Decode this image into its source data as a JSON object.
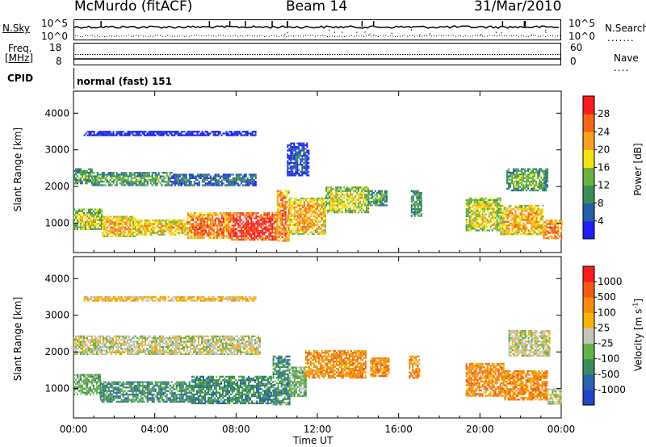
{
  "header": {
    "station": "McMurdo (fitACF)",
    "beam": "Beam 14",
    "date": "31/Mar/2010"
  },
  "top_panel": {
    "left_label": "N.Sky",
    "right_label": "N.Search",
    "left_ticks": [
      "10^5",
      "10^0"
    ],
    "right_ticks": [
      "10^5",
      "10^0"
    ]
  },
  "freq_panel": {
    "left_label_line1": "Freq.",
    "left_label_line2": "[MHz]",
    "right_label": "Nave",
    "left_ticks": [
      "18",
      "8"
    ],
    "right_ticks": [
      "60",
      "0"
    ]
  },
  "cpid": {
    "label": "CPID",
    "value": "normal (fast) 151"
  },
  "chart_data": [
    {
      "type": "heatmap",
      "name": "power",
      "ylabel": "Slant Range [km]",
      "ylim": [
        200,
        4600
      ],
      "yticks": [
        "1000",
        "2000",
        "3000",
        "4000"
      ],
      "colorbar_label": "Power [dB]",
      "colorbar_ticks": [
        "4",
        "8",
        "12",
        "16",
        "20",
        "24",
        "28"
      ],
      "colorbar_colors": [
        "#1d1dff",
        "#245ea8",
        "#3b8d54",
        "#69b244",
        "#f2e30f",
        "#f7a11e",
        "#f46515",
        "#ff1b1b"
      ],
      "regions": [
        {
          "t": [
            0.0,
            0.9
          ],
          "r": [
            2100,
            2500
          ],
          "level": 3
        },
        {
          "t": [
            0.9,
            4.8
          ],
          "r": [
            2050,
            2400
          ],
          "level": 3
        },
        {
          "t": [
            4.8,
            9.0
          ],
          "r": [
            2050,
            2350
          ],
          "level": 2
        },
        {
          "t": [
            0.0,
            1.4
          ],
          "r": [
            850,
            1400
          ],
          "level": 4
        },
        {
          "t": [
            1.4,
            3.0
          ],
          "r": [
            650,
            1200
          ],
          "level": 5
        },
        {
          "t": [
            3.0,
            5.6
          ],
          "r": [
            700,
            1100
          ],
          "level": 5
        },
        {
          "t": [
            5.6,
            7.6
          ],
          "r": [
            600,
            1300
          ],
          "level": 6
        },
        {
          "t": [
            7.6,
            10.0
          ],
          "r": [
            550,
            1300
          ],
          "level": 7
        },
        {
          "t": [
            10.0,
            10.6
          ],
          "r": [
            500,
            1900
          ],
          "level": 6
        },
        {
          "t": [
            10.6,
            12.4
          ],
          "r": [
            700,
            1700
          ],
          "level": 5
        },
        {
          "t": [
            12.4,
            14.5
          ],
          "r": [
            1300,
            2000
          ],
          "level": 4
        },
        {
          "t": [
            14.5,
            15.4
          ],
          "r": [
            1500,
            1900
          ],
          "level": 3
        },
        {
          "t": [
            16.6,
            17.1
          ],
          "r": [
            1200,
            1900
          ],
          "level": 3
        },
        {
          "t": [
            19.3,
            21.0
          ],
          "r": [
            800,
            1700
          ],
          "level": 4
        },
        {
          "t": [
            21.0,
            23.1
          ],
          "r": [
            700,
            1500
          ],
          "level": 5
        },
        {
          "t": [
            23.1,
            24.0
          ],
          "r": [
            600,
            1100
          ],
          "level": 6
        },
        {
          "t": [
            21.3,
            23.3
          ],
          "r": [
            1900,
            2500
          ],
          "level": 3
        },
        {
          "t": [
            10.5,
            11.6
          ],
          "r": [
            2300,
            3200
          ],
          "level": 1
        },
        {
          "t": [
            0.5,
            9.0
          ],
          "r": [
            3420,
            3520
          ],
          "level": 1
        }
      ]
    },
    {
      "type": "heatmap",
      "name": "velocity",
      "ylabel": "Slant Range [km]",
      "xlabel": "Time UT",
      "xticks": [
        "00:00",
        "04:00",
        "08:00",
        "12:00",
        "16:00",
        "20:00",
        "00:00"
      ],
      "xlim": [
        0,
        24
      ],
      "ylim": [
        200,
        4600
      ],
      "yticks": [
        "1000",
        "2000",
        "3000",
        "4000"
      ],
      "colorbar_label": "Velocity [m s^-1]",
      "colorbar_ticks": [
        "1000",
        "500",
        "100",
        "25",
        "-25",
        "-100",
        "-500",
        "-1000"
      ],
      "colorbar_colors": [
        "#2243c8",
        "#2c61b4",
        "#3b8a5a",
        "#62b245",
        "#c4c4bf",
        "#f6b300",
        "#f68b0d",
        "#f45a13",
        "#ff1b1b"
      ],
      "regions": [
        {
          "t": [
            0.0,
            9.2
          ],
          "r": [
            1950,
            2450
          ],
          "level": 4
        },
        {
          "t": [
            0.0,
            1.3
          ],
          "r": [
            850,
            1400
          ],
          "level": 3
        },
        {
          "t": [
            1.3,
            5.8
          ],
          "r": [
            650,
            1200
          ],
          "level": 2
        },
        {
          "t": [
            5.8,
            9.8
          ],
          "r": [
            600,
            1350
          ],
          "level": 2
        },
        {
          "t": [
            9.8,
            10.6
          ],
          "r": [
            550,
            1900
          ],
          "level": 2
        },
        {
          "t": [
            10.6,
            11.4
          ],
          "r": [
            800,
            1600
          ],
          "level": 3
        },
        {
          "t": [
            11.4,
            14.4
          ],
          "r": [
            1300,
            2050
          ],
          "level": 6
        },
        {
          "t": [
            14.6,
            15.5
          ],
          "r": [
            1350,
            1850
          ],
          "level": 6
        },
        {
          "t": [
            16.5,
            17.0
          ],
          "r": [
            1300,
            1900
          ],
          "level": 6
        },
        {
          "t": [
            19.3,
            21.2
          ],
          "r": [
            800,
            1700
          ],
          "level": 6
        },
        {
          "t": [
            21.2,
            23.3
          ],
          "r": [
            700,
            1500
          ],
          "level": 6
        },
        {
          "t": [
            23.3,
            24.0
          ],
          "r": [
            600,
            1000
          ],
          "level": 4
        },
        {
          "t": [
            21.4,
            23.4
          ],
          "r": [
            1900,
            2600
          ],
          "level": 4
        },
        {
          "t": [
            0.5,
            9.0
          ],
          "r": [
            3420,
            3520
          ],
          "level": 5
        }
      ]
    }
  ]
}
